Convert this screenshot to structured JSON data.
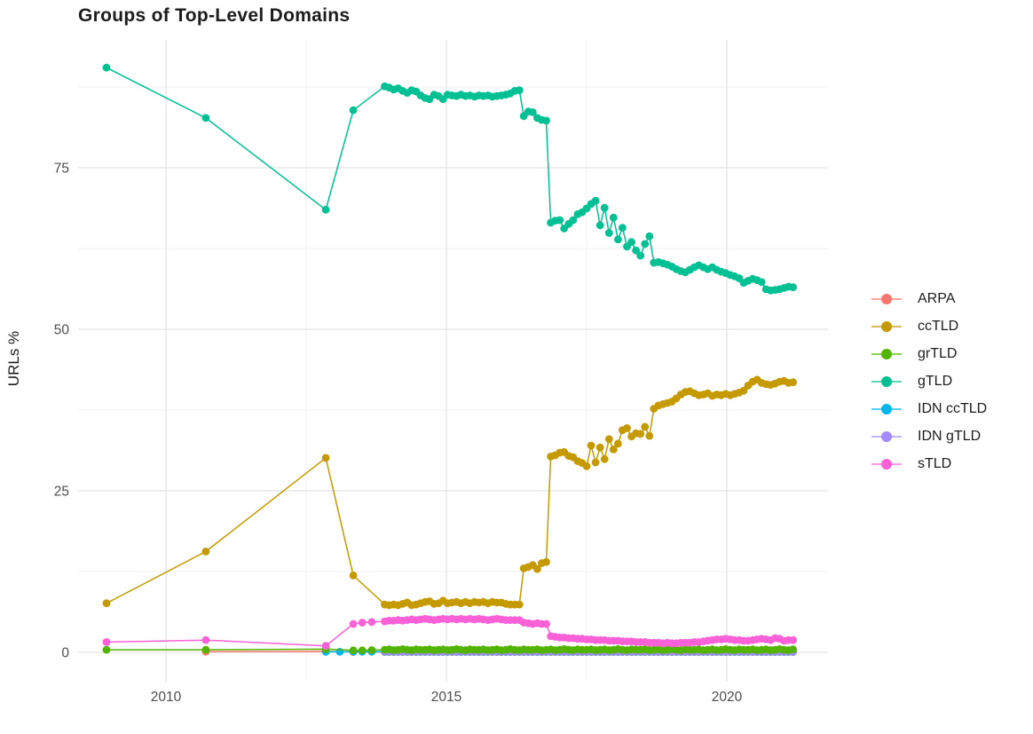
{
  "title": "Groups of Top-Level Domains",
  "y_axis": {
    "label": "URLs %",
    "ticks": [
      "0",
      "25",
      "50",
      "75"
    ],
    "tick_values": [
      0,
      25,
      50,
      75
    ]
  },
  "x_axis": {
    "ticks": [
      "2010",
      "2015",
      "2020"
    ],
    "tick_values": [
      2010,
      2015,
      2020
    ]
  },
  "legend": {
    "position": "right",
    "items": [
      {
        "label": "ARPA",
        "color": "#F8766D"
      },
      {
        "label": "ccTLD",
        "color": "#C49A00"
      },
      {
        "label": "grTLD",
        "color": "#53B400"
      },
      {
        "label": "gTLD",
        "color": "#00C094"
      },
      {
        "label": "IDN ccTLD",
        "color": "#00B6EB"
      },
      {
        "label": "IDN gTLD",
        "color": "#A58AFF"
      },
      {
        "label": "sTLD",
        "color": "#FB61D7"
      }
    ]
  },
  "chart_data": {
    "type": "line",
    "title": "Groups of Top-Level Domains",
    "xlabel": "",
    "ylabel": "URLs %",
    "xlim": [
      2008.4,
      2021.8
    ],
    "ylim": [
      -4.5,
      94.8
    ],
    "x_major_ticks": [
      2010,
      2015,
      2020
    ],
    "x_minor_ticks": [
      2012.5,
      2017.5
    ],
    "y_major_ticks": [
      0,
      25,
      50,
      75
    ],
    "y_minor_ticks": [
      12.5,
      37.5,
      62.5,
      87.5
    ],
    "grid": true,
    "legend_position": "right",
    "dense_x": [
      2013.9,
      2013.98,
      2014.06,
      2014.14,
      2014.22,
      2014.3,
      2014.38,
      2014.46,
      2014.54,
      2014.62,
      2014.7,
      2014.78,
      2014.86,
      2014.94,
      2015.02,
      2015.1,
      2015.18,
      2015.26,
      2015.34,
      2015.42,
      2015.5,
      2015.58,
      2015.66,
      2015.74,
      2015.82,
      2015.9,
      2015.98,
      2016.06,
      2016.14,
      2016.22,
      2016.3,
      2016.38,
      2016.46,
      2016.54,
      2016.62,
      2016.7,
      2016.78,
      2016.86,
      2016.94,
      2017.02,
      2017.1,
      2017.18,
      2017.26,
      2017.34,
      2017.42,
      2017.5,
      2017.58,
      2017.66,
      2017.74,
      2017.82,
      2017.9,
      2017.98,
      2018.06,
      2018.14,
      2018.22,
      2018.3,
      2018.38,
      2018.46,
      2018.54,
      2018.62,
      2018.7,
      2018.78,
      2018.86,
      2018.94,
      2019.02,
      2019.1,
      2019.18,
      2019.26,
      2019.34,
      2019.42,
      2019.5,
      2019.58,
      2019.66,
      2019.74,
      2019.82,
      2019.9,
      2019.98,
      2020.06,
      2020.14,
      2020.22,
      2020.3,
      2020.38,
      2020.46,
      2020.54,
      2020.62,
      2020.7,
      2020.78,
      2020.86,
      2020.94,
      2021.02,
      2021.1,
      2021.18
    ],
    "series": [
      {
        "name": "ARPA",
        "color": "#F8766D",
        "early": [
          [
            2010.71,
            0.1
          ],
          [
            2012.85,
            0.15
          ],
          [
            2013.34,
            0.05
          ]
        ],
        "dense": [
          0.05,
          0.05,
          0.05,
          0.05,
          0.05,
          0.05,
          0.05,
          0.05,
          0.05,
          0.05,
          0.05,
          0.05,
          0.05,
          0.05,
          0.05,
          0.05,
          0.05,
          0.05,
          0.05,
          0.05,
          0.05,
          0.05,
          0.05,
          0.05,
          0.05,
          0.05,
          0.05,
          0.05,
          0.05,
          0.05,
          0.05,
          0.05,
          0.05,
          0.05,
          0.05,
          0.05,
          0.05,
          0.05,
          0.05,
          0.05,
          0.05,
          0.05,
          0.05,
          0.05,
          0.05,
          0.05,
          0.05,
          0.05,
          0.05,
          0.05,
          0.05,
          0.05,
          0.05,
          0.05,
          0.05,
          0.05,
          0.05,
          0.05,
          0.05,
          0.05,
          0.05,
          0.05,
          0.05,
          0.05,
          0.05,
          0.05,
          0.05,
          0.05,
          0.05,
          0.05,
          0.05,
          0.05,
          0.05,
          0.05,
          0.05,
          0.05,
          0.05,
          0.05,
          0.05,
          0.05,
          0.05,
          0.05,
          0.05,
          0.05,
          0.05,
          0.05,
          0.05,
          0.05,
          0.05,
          0.05,
          0.05,
          0.05
        ]
      },
      {
        "name": "ccTLD",
        "color": "#C49A00",
        "early": [
          [
            2008.94,
            7.6
          ],
          [
            2010.71,
            15.6
          ],
          [
            2012.85,
            30.1
          ],
          [
            2013.34,
            11.9
          ]
        ],
        "dense": [
          7.4,
          7.3,
          7.4,
          7.3,
          7.5,
          7.7,
          7.3,
          7.4,
          7.6,
          7.8,
          7.9,
          7.5,
          7.6,
          8.0,
          7.6,
          7.7,
          7.8,
          7.6,
          7.8,
          7.6,
          7.8,
          7.7,
          7.8,
          7.6,
          7.8,
          7.7,
          7.7,
          7.5,
          7.4,
          7.4,
          7.4,
          13.0,
          13.2,
          13.5,
          12.9,
          13.8,
          14.0,
          30.3,
          30.5,
          30.9,
          31.0,
          30.4,
          30.2,
          29.6,
          29.3,
          28.8,
          32.0,
          29.4,
          31.7,
          29.9,
          33.0,
          31.4,
          32.3,
          34.4,
          34.7,
          33.4,
          33.9,
          33.8,
          34.9,
          33.5,
          37.7,
          38.2,
          38.4,
          38.6,
          38.8,
          39.3,
          39.9,
          40.3,
          40.4,
          40.1,
          39.8,
          39.9,
          40.1,
          39.7,
          39.9,
          39.8,
          40.0,
          39.8,
          40.0,
          40.2,
          40.5,
          41.3,
          41.9,
          42.2,
          41.7,
          41.5,
          41.4,
          41.6,
          41.9,
          42.0,
          41.7,
          41.8
        ]
      },
      {
        "name": "grTLD",
        "color": "#53B400",
        "early": [
          [
            2008.94,
            0.4
          ],
          [
            2010.71,
            0.4
          ],
          [
            2012.85,
            0.5
          ],
          [
            2013.34,
            0.3
          ],
          [
            2013.5,
            0.3
          ],
          [
            2013.67,
            0.35
          ]
        ],
        "dense": [
          0.4,
          0.45,
          0.35,
          0.4,
          0.5,
          0.4,
          0.35,
          0.45,
          0.4,
          0.4,
          0.45,
          0.35,
          0.4,
          0.45,
          0.35,
          0.4,
          0.5,
          0.4,
          0.35,
          0.45,
          0.4,
          0.4,
          0.45,
          0.35,
          0.4,
          0.45,
          0.35,
          0.4,
          0.5,
          0.4,
          0.35,
          0.45,
          0.4,
          0.4,
          0.45,
          0.35,
          0.4,
          0.45,
          0.35,
          0.4,
          0.5,
          0.4,
          0.35,
          0.45,
          0.4,
          0.4,
          0.45,
          0.35,
          0.4,
          0.45,
          0.35,
          0.4,
          0.5,
          0.4,
          0.35,
          0.45,
          0.4,
          0.4,
          0.45,
          0.35,
          0.4,
          0.45,
          0.35,
          0.4,
          0.5,
          0.4,
          0.35,
          0.45,
          0.4,
          0.4,
          0.45,
          0.35,
          0.4,
          0.45,
          0.35,
          0.4,
          0.5,
          0.4,
          0.35,
          0.45,
          0.4,
          0.4,
          0.45,
          0.35,
          0.4,
          0.45,
          0.35,
          0.4,
          0.5,
          0.4,
          0.35,
          0.45
        ]
      },
      {
        "name": "gTLD",
        "color": "#00C094",
        "early": [
          [
            2008.94,
            90.5
          ],
          [
            2010.71,
            82.7
          ],
          [
            2012.85,
            68.5
          ],
          [
            2013.34,
            83.9
          ]
        ],
        "dense": [
          87.6,
          87.4,
          87.1,
          87.3,
          86.9,
          86.6,
          87.0,
          86.8,
          86.2,
          85.8,
          85.6,
          86.3,
          86.1,
          85.6,
          86.3,
          86.2,
          86.1,
          86.3,
          86.1,
          86.2,
          86.0,
          86.2,
          86.1,
          86.2,
          86.0,
          86.1,
          86.2,
          86.3,
          86.5,
          86.9,
          87.0,
          83.0,
          83.7,
          83.6,
          82.7,
          82.4,
          82.3,
          66.5,
          66.8,
          66.9,
          65.6,
          66.3,
          66.9,
          67.8,
          68.1,
          68.7,
          69.4,
          69.9,
          66.1,
          68.8,
          64.9,
          67.3,
          63.9,
          65.7,
          62.8,
          63.5,
          62.2,
          61.4,
          63.2,
          64.4,
          60.3,
          60.4,
          60.2,
          60.0,
          59.7,
          59.3,
          59.0,
          58.8,
          59.2,
          59.6,
          59.9,
          59.6,
          59.3,
          59.6,
          59.2,
          58.9,
          58.7,
          58.4,
          58.2,
          57.9,
          57.2,
          57.5,
          57.8,
          57.6,
          57.3,
          56.2,
          56.0,
          56.1,
          56.2,
          56.4,
          56.6,
          56.5
        ]
      },
      {
        "name": "IDN ccTLD",
        "color": "#00B6EB",
        "early": [
          [
            2012.85,
            0.08
          ],
          [
            2013.1,
            0.08
          ],
          [
            2013.34,
            0.1
          ],
          [
            2013.5,
            0.1
          ],
          [
            2013.67,
            0.1
          ]
        ],
        "dense": [
          0.1,
          0.1,
          0.1,
          0.1,
          0.1,
          0.1,
          0.1,
          0.1,
          0.1,
          0.1,
          0.1,
          0.1,
          0.1,
          0.1,
          0.1,
          0.1,
          0.1,
          0.1,
          0.1,
          0.1,
          0.1,
          0.1,
          0.1,
          0.1,
          0.1,
          0.1,
          0.1,
          0.1,
          0.1,
          0.1,
          0.1,
          0.1,
          0.1,
          0.1,
          0.1,
          0.1,
          0.1,
          0.1,
          0.1,
          0.1,
          0.1,
          0.1,
          0.1,
          0.1,
          0.1,
          0.1,
          0.1,
          0.1,
          0.1,
          0.1,
          0.1,
          0.1,
          0.1,
          0.1,
          0.1,
          0.1,
          0.1,
          0.1,
          0.1,
          0.1,
          0.1,
          0.1,
          0.1,
          0.1,
          0.1,
          0.1,
          0.1,
          0.1,
          0.1,
          0.1,
          0.1,
          0.1,
          0.1,
          0.1,
          0.1,
          0.1,
          0.1,
          0.1,
          0.1,
          0.1,
          0.1,
          0.1,
          0.1,
          0.1,
          0.1,
          0.1,
          0.1,
          0.1,
          0.1,
          0.1,
          0.1,
          0.1
        ]
      },
      {
        "name": "IDN gTLD",
        "color": "#A58AFF",
        "early": [],
        "dense": [
          0.15,
          0.15,
          0.15,
          0.15,
          0.15,
          0.15,
          0.15,
          0.15,
          0.15,
          0.15,
          0.15,
          0.15,
          0.15,
          0.15,
          0.15,
          0.15,
          0.15,
          0.15,
          0.15,
          0.15,
          0.15,
          0.15,
          0.15,
          0.15,
          0.15,
          0.15,
          0.15,
          0.15,
          0.15,
          0.15,
          0.15,
          0.15,
          0.15,
          0.15,
          0.15,
          0.15,
          0.15,
          0.15,
          0.15,
          0.15,
          0.15,
          0.15,
          0.15,
          0.15,
          0.15,
          0.15,
          0.15,
          0.15,
          0.15,
          0.15,
          0.15,
          0.15,
          0.15,
          0.15,
          0.15,
          0.15,
          0.15,
          0.15,
          0.15,
          0.15,
          0.15,
          0.15,
          0.15,
          0.15,
          0.15,
          0.15,
          0.15,
          0.15,
          0.15,
          0.15,
          0.15,
          0.15,
          0.15,
          0.15,
          0.15,
          0.15,
          0.15,
          0.15,
          0.15,
          0.15,
          0.15,
          0.15,
          0.15,
          0.15,
          0.15,
          0.15,
          0.15,
          0.15,
          0.15,
          0.15,
          0.15,
          0.15
        ]
      },
      {
        "name": "sTLD",
        "color": "#FB61D7",
        "early": [
          [
            2008.94,
            1.6
          ],
          [
            2010.71,
            1.9
          ],
          [
            2012.85,
            1.0
          ],
          [
            2013.34,
            4.4
          ],
          [
            2013.5,
            4.6
          ],
          [
            2013.67,
            4.7
          ]
        ],
        "dense": [
          4.8,
          4.9,
          4.9,
          5.0,
          4.9,
          5.0,
          5.1,
          5.0,
          5.1,
          5.2,
          5.1,
          5.0,
          5.1,
          5.2,
          5.1,
          5.2,
          5.1,
          5.2,
          5.1,
          5.2,
          5.1,
          5.2,
          5.1,
          5.0,
          5.1,
          5.2,
          5.1,
          5.0,
          5.0,
          5.0,
          5.0,
          4.6,
          4.5,
          4.4,
          4.5,
          4.4,
          4.4,
          2.5,
          2.4,
          2.3,
          2.3,
          2.2,
          2.2,
          2.1,
          2.1,
          2.0,
          2.0,
          1.9,
          1.9,
          1.9,
          1.8,
          1.8,
          1.8,
          1.7,
          1.7,
          1.7,
          1.6,
          1.6,
          1.6,
          1.5,
          1.5,
          1.5,
          1.4,
          1.5,
          1.4,
          1.4,
          1.5,
          1.5,
          1.5,
          1.6,
          1.6,
          1.7,
          1.8,
          1.9,
          2.0,
          2.0,
          2.1,
          2.0,
          1.9,
          1.9,
          1.8,
          1.8,
          1.9,
          2.0,
          2.1,
          2.0,
          1.9,
          2.2,
          2.1,
          1.8,
          1.9,
          1.9
        ]
      }
    ]
  }
}
